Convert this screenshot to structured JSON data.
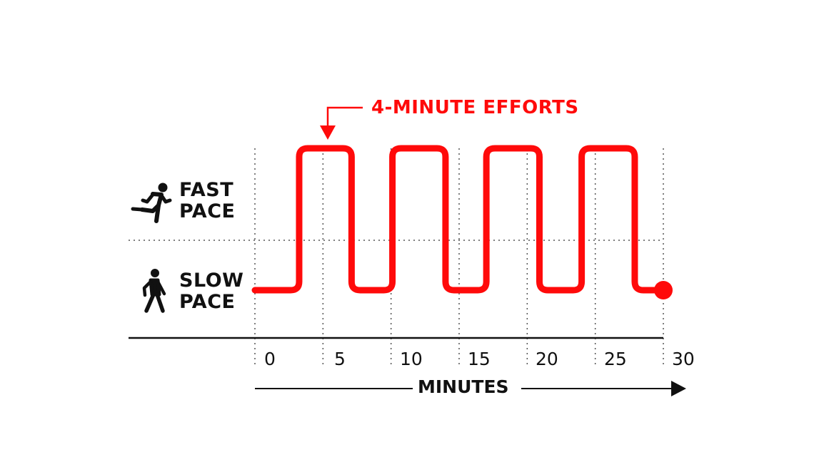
{
  "chart_data": {
    "type": "line",
    "title": "",
    "annotation": "4-MINUTE EFFORTS",
    "xlabel": "MINUTES",
    "ylabel": "",
    "x_ticks": [
      "0",
      "5",
      "10",
      "15",
      "20",
      "25",
      "30"
    ],
    "y_levels": [
      {
        "name": "SLOW PACE",
        "icon": "walking-person-icon",
        "value": 0
      },
      {
        "name": "FAST PACE",
        "icon": "running-person-icon",
        "value": 1
      }
    ],
    "xlim": [
      0,
      30
    ],
    "ylim": [
      0,
      1
    ],
    "grid": true,
    "series": [
      {
        "name": "pace",
        "color": "#ff0a0a",
        "x": [
          0,
          3.25,
          3.25,
          7.1,
          7.1,
          10.1,
          10.1,
          14.0,
          14.0,
          17.0,
          17.0,
          20.9,
          20.9,
          24.0,
          24.0,
          27.9,
          27.9,
          30
        ],
        "y": [
          0,
          0,
          1,
          1,
          0,
          0,
          1,
          1,
          0,
          0,
          1,
          1,
          0,
          0,
          1,
          1,
          0,
          0
        ]
      }
    ],
    "efforts": [
      {
        "start": 3.25,
        "end": 7.1
      },
      {
        "start": 10.1,
        "end": 14.0
      },
      {
        "start": 17.0,
        "end": 20.9
      },
      {
        "start": 24.0,
        "end": 27.9
      }
    ]
  },
  "labels": {
    "fast_line1": "FAST",
    "fast_line2": "PACE",
    "slow_line1": "SLOW",
    "slow_line2": "PACE",
    "annotation": "4-MINUTE EFFORTS",
    "xlabel": "MINUTES",
    "ticks": [
      "0",
      "5",
      "10",
      "15",
      "20",
      "25",
      "30"
    ]
  },
  "colors": {
    "accent": "#ff0a0a",
    "text": "#111111",
    "grid": "#555555"
  }
}
